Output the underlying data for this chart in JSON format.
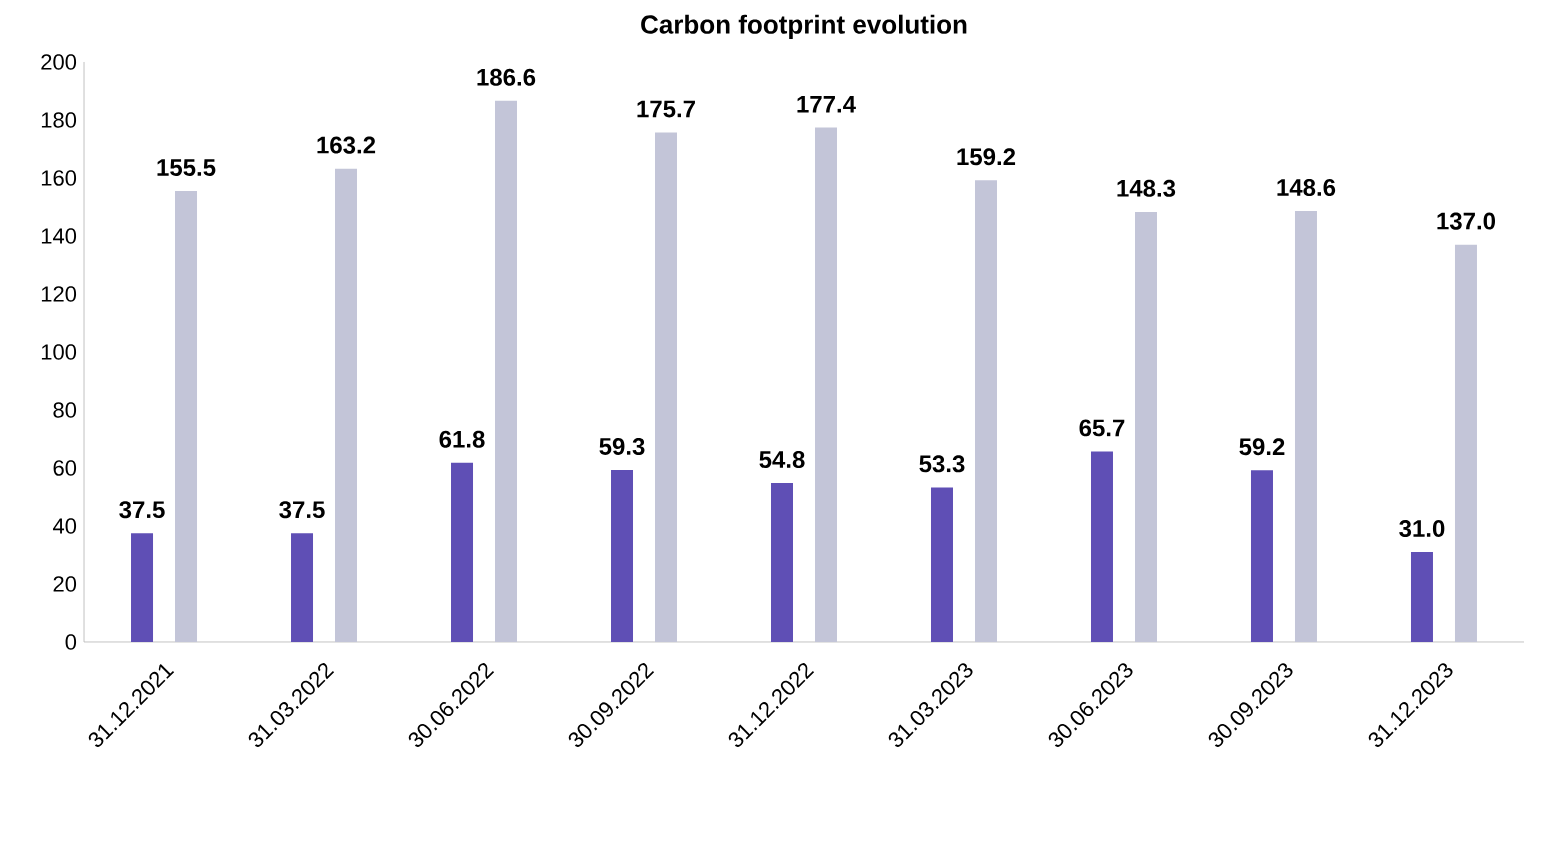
{
  "chart_data": {
    "type": "bar",
    "title": "Carbon footprint evolution",
    "categories": [
      "31.12.2021",
      "31.03.2022",
      "30.06.2022",
      "30.09.2022",
      "31.12.2022",
      "31.03.2023",
      "30.06.2023",
      "30.09.2023",
      "31.12.2023"
    ],
    "series": [
      {
        "color": "#5f4fb5",
        "values": [
          37.5,
          37.5,
          61.8,
          59.3,
          54.8,
          53.3,
          65.7,
          59.2,
          31.0
        ],
        "value_labels": [
          "37.5",
          "37.5",
          "61.8",
          "59.3",
          "54.8",
          "53.3",
          "65.7",
          "59.2",
          "31.0"
        ]
      },
      {
        "color": "#c3c5d8",
        "values": [
          155.5,
          163.2,
          186.6,
          175.7,
          177.4,
          159.2,
          148.3,
          148.6,
          137.0
        ],
        "value_labels": [
          "155.5",
          "163.2",
          "186.6",
          "175.7",
          "177.4",
          "159.2",
          "148.3",
          "148.6",
          "137.0"
        ]
      }
    ],
    "ylim": [
      0,
      200
    ],
    "yticks": [
      0,
      20,
      40,
      60,
      80,
      100,
      120,
      140,
      160,
      180,
      200
    ],
    "grid": false
  }
}
